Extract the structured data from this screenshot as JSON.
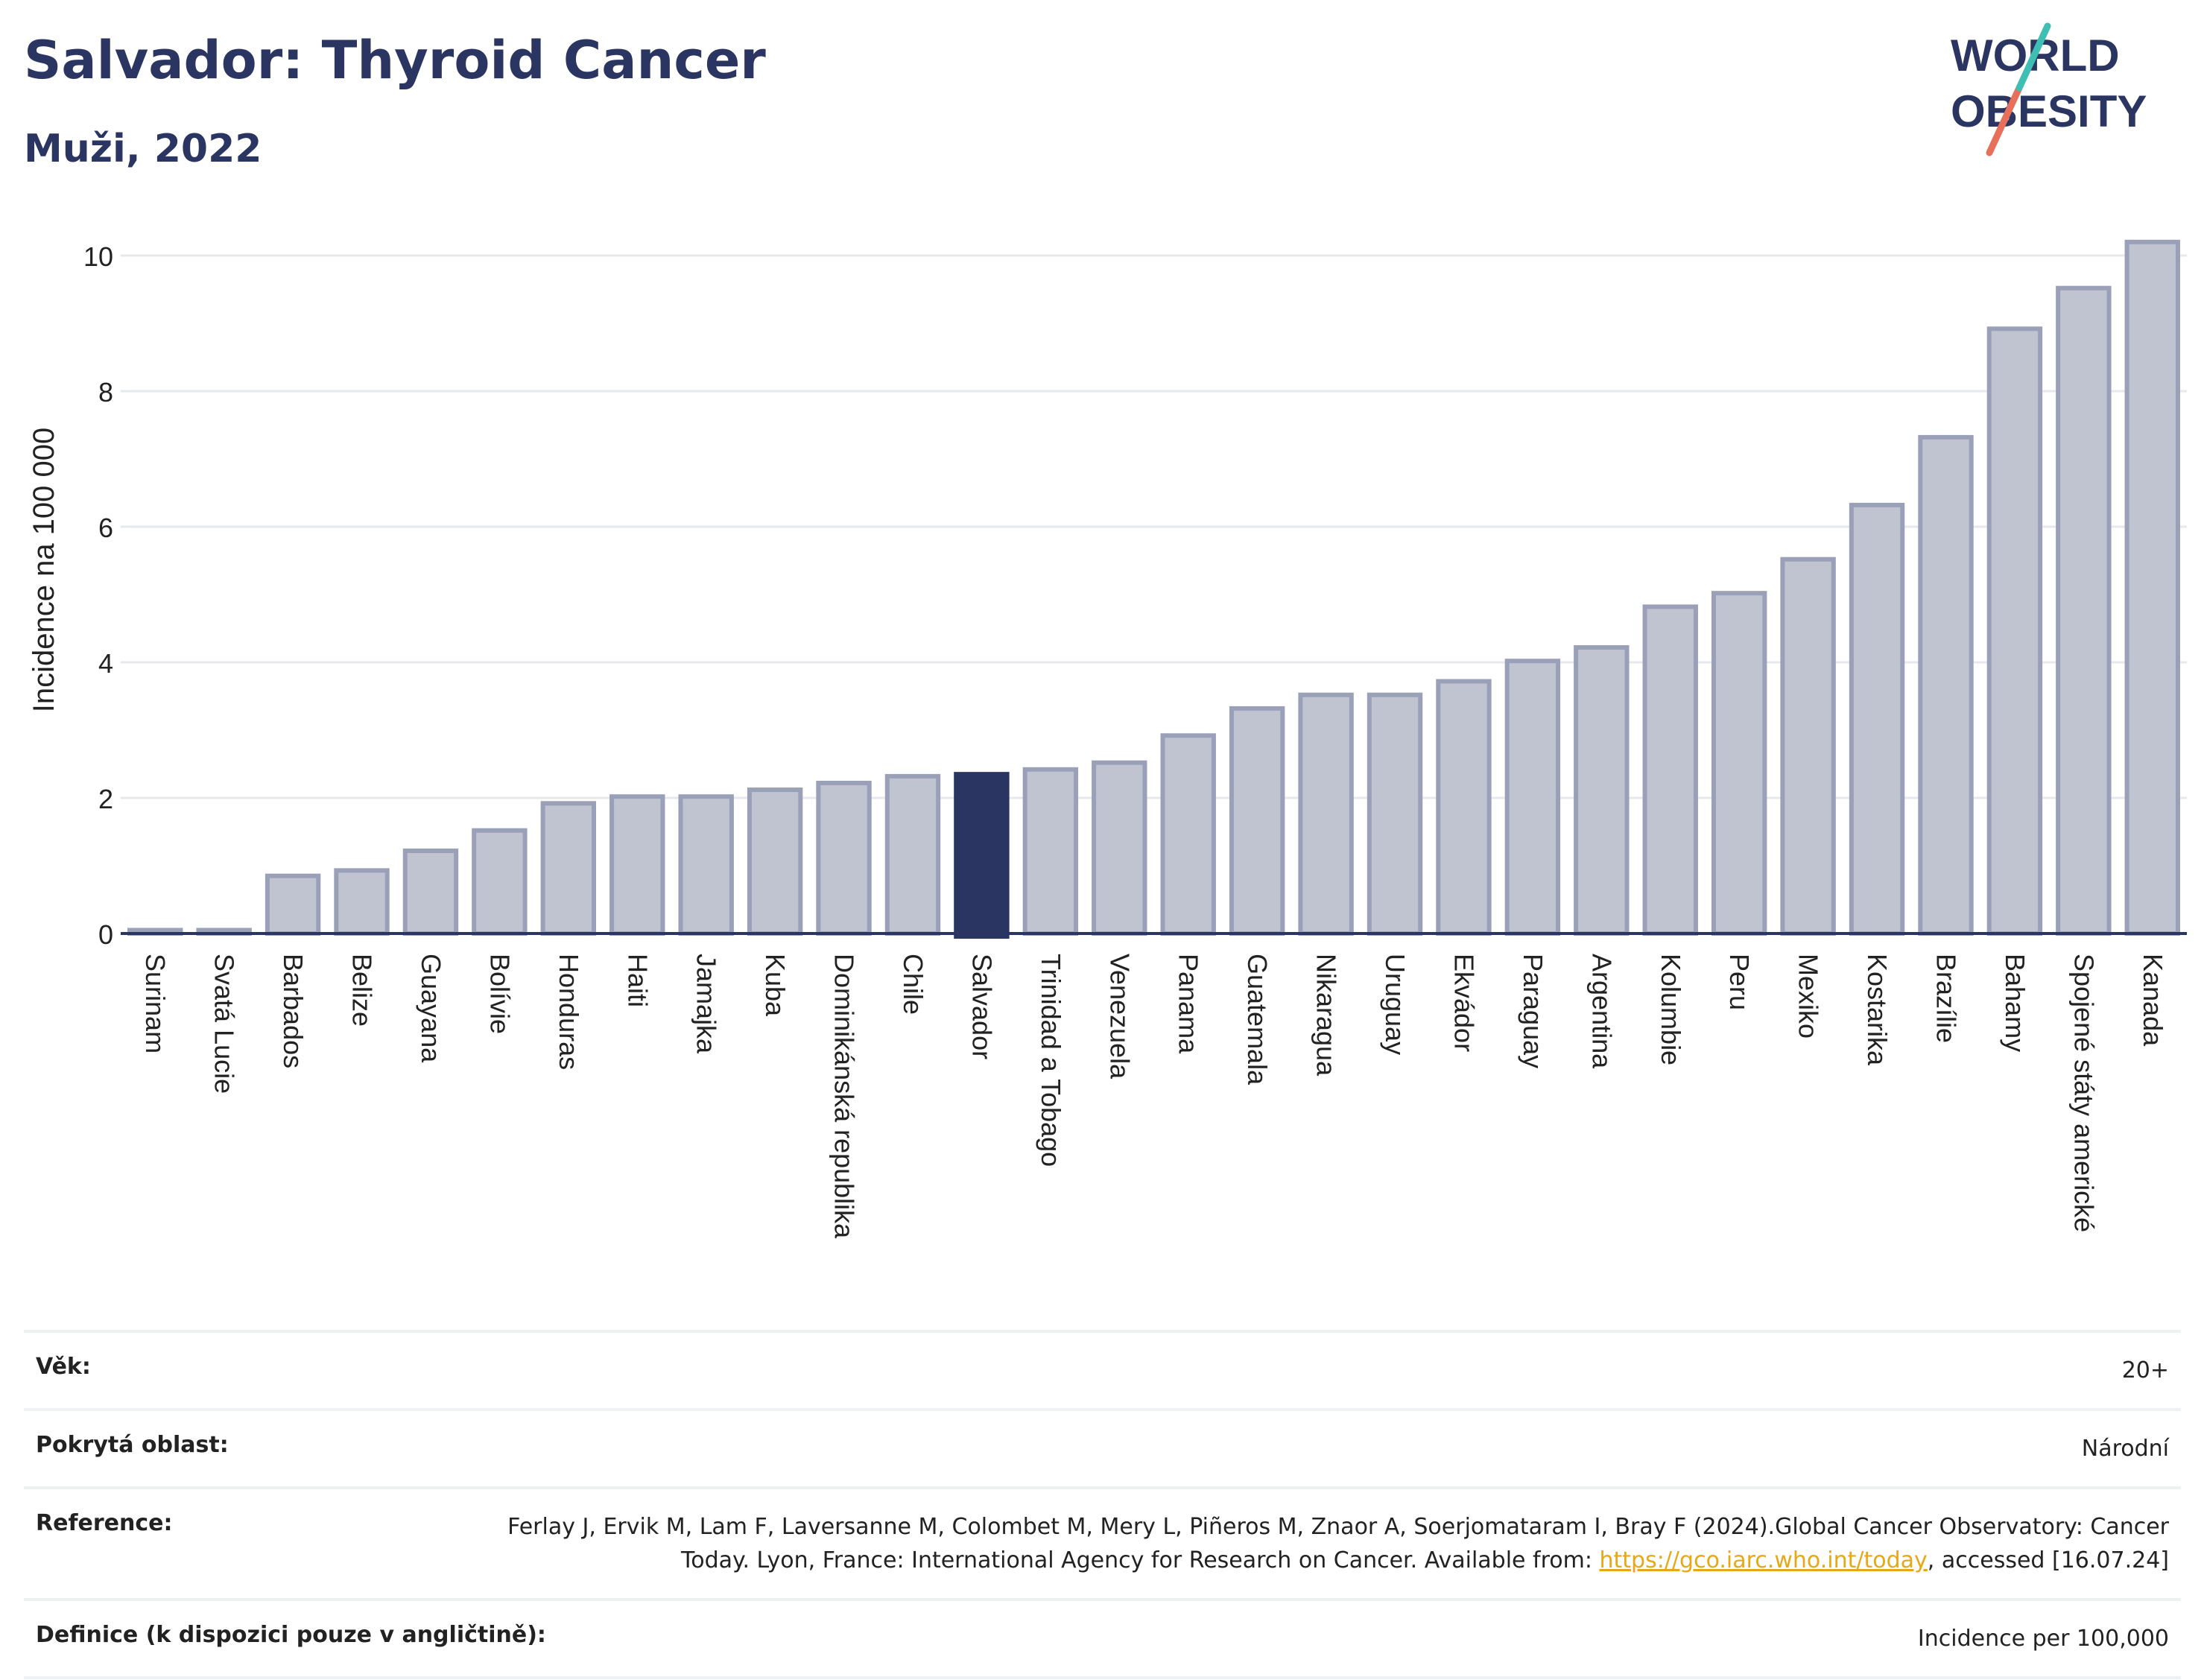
{
  "header": {
    "title": "Salvador: Thyroid Cancer",
    "subtitle": "Muži, 2022"
  },
  "logo": {
    "line1": "WORLD",
    "line2": "OBESITY"
  },
  "chart_data": {
    "type": "bar",
    "ylabel": "Incidence na 100 000",
    "xlabel": "",
    "ylim": [
      0,
      10.5
    ],
    "yticks": [
      0,
      2,
      4,
      6,
      8,
      10
    ],
    "grid": true,
    "highlight": "Salvador",
    "colors": {
      "bar": "#c0c4d1",
      "bar_edge": "#9aa0b8",
      "highlight": "#2b3561",
      "grid": "#e6e8ee"
    },
    "categories": [
      "Surinam",
      "Svatá Lucie",
      "Barbados",
      "Belize",
      "Guayana",
      "Bolívie",
      "Honduras",
      "Haiti",
      "Jamajka",
      "Kuba",
      "Dominikánská republika",
      "Chile",
      "Salvador",
      "Trinidad a Tobago",
      "Venezuela",
      "Panama",
      "Guatemala",
      "Nikaragua",
      "Uruguay",
      "Ekvádor",
      "Paraguay",
      "Argentina",
      "Kolumbie",
      "Peru",
      "Mexiko",
      "Kostarika",
      "Brazílie",
      "Bahamy",
      "Spojené státy americké",
      "Kanada"
    ],
    "values": [
      0.05,
      0.05,
      0.85,
      0.93,
      1.22,
      1.52,
      1.92,
      2.02,
      2.02,
      2.12,
      2.22,
      2.32,
      2.35,
      2.42,
      2.52,
      2.92,
      3.32,
      3.52,
      3.52,
      3.72,
      4.02,
      4.22,
      4.82,
      5.02,
      5.52,
      6.32,
      7.32,
      8.92,
      9.52,
      10.2
    ]
  },
  "info": {
    "age_label": "Věk:",
    "age_value": "20+",
    "area_label": "Pokrytá oblast:",
    "area_value": "Národní",
    "ref_label": "Reference:",
    "ref_text_1": "Ferlay J, Ervik M, Lam F, Laversanne M, Colombet M, Mery L, Piñeros M, Znaor A, Soerjomataram I, Bray F (2024).Global Cancer Observatory: Cancer Today. Lyon, France: International Agency for Research on Cancer. Available from: ",
    "ref_link": "https://gco.iarc.who.int/today",
    "ref_text_2": ", accessed [16.07.24]",
    "def_label": "Definice (k dispozici pouze v angličtině):",
    "def_value": "Incidence per 100,000"
  }
}
